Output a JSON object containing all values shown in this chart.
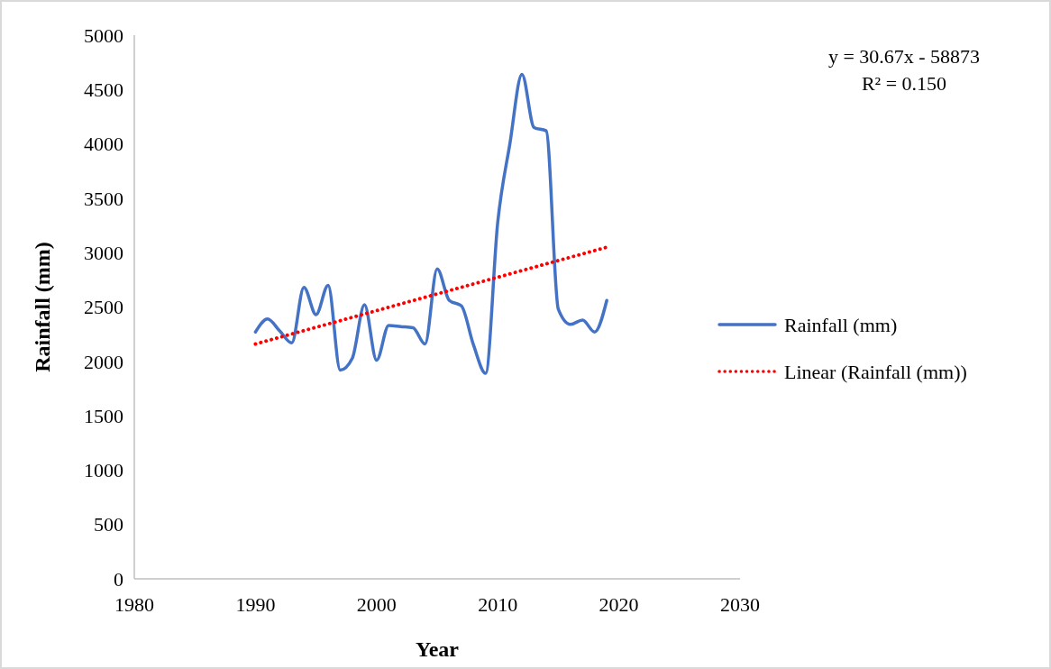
{
  "chart_data": {
    "type": "line",
    "xlabel": "Year",
    "ylabel": "Rainfall (mm)",
    "xlim": [
      1980,
      2030
    ],
    "xticks": [
      1980,
      1990,
      2000,
      2010,
      2020,
      2030
    ],
    "ylim": [
      0,
      5000
    ],
    "yticks": [
      0,
      500,
      1000,
      1500,
      2000,
      2500,
      3000,
      3500,
      4000,
      4500,
      5000
    ],
    "grid": false,
    "legend": "right",
    "marker": "none",
    "x": [
      1990,
      1991,
      1992,
      1993,
      1994,
      1995,
      1996,
      1997,
      1998,
      1999,
      2000,
      2001,
      2002,
      2003,
      2004,
      2005,
      2006,
      2007,
      2008,
      2009,
      2010,
      2011,
      2012,
      2013,
      2014,
      2015,
      2016,
      2017,
      2018,
      2019
    ],
    "series": [
      {
        "name": "Rainfall (mm)",
        "color": "#4472c4",
        "line_style": "solid",
        "values": [
          2270,
          2390,
          2280,
          2170,
          2680,
          2430,
          2700,
          1920,
          2030,
          2520,
          2010,
          2330,
          2320,
          2310,
          2160,
          2850,
          2560,
          2510,
          2150,
          1890,
          3280,
          4000,
          4640,
          4150,
          4120,
          2480,
          2340,
          2380,
          2270,
          2560
        ]
      },
      {
        "name": "Linear (Rainfall (mm))",
        "type": "line",
        "color": "#ff0000",
        "line_style": "dotted",
        "x": [
          1990,
          2019
        ],
        "values": [
          2160,
          3050
        ]
      }
    ],
    "annotations": [
      "y = 30.67x - 58873",
      "R² = 0.150"
    ]
  }
}
